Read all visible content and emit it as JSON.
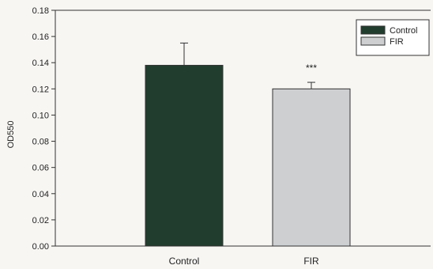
{
  "chart_data": {
    "type": "bar",
    "categories": [
      "Control",
      "FIR"
    ],
    "series": [
      {
        "name": "Control",
        "values": [
          0.138,
          null
        ],
        "errors": [
          0.017,
          null
        ],
        "color": "#213d2e"
      },
      {
        "name": "FIR",
        "values": [
          null,
          0.12
        ],
        "errors": [
          null,
          0.005
        ],
        "color": "#cdcfd1"
      }
    ],
    "annotations": [
      {
        "category": "FIR",
        "text": "***"
      }
    ],
    "xlabel": "",
    "ylabel": "OD550",
    "ylim": [
      0,
      0.18
    ],
    "yticks": [
      0.0,
      0.02,
      0.04,
      0.06,
      0.08,
      0.1,
      0.12,
      0.14,
      0.16,
      0.18
    ],
    "ytick_labels": [
      "0.00",
      "0.02",
      "0.04",
      "0.06",
      "0.08",
      "0.10",
      "0.12",
      "0.14",
      "0.16",
      "0.18"
    ],
    "legend": {
      "placement": "top-right",
      "entries": [
        "Control",
        "FIR"
      ]
    },
    "grid": false
  }
}
